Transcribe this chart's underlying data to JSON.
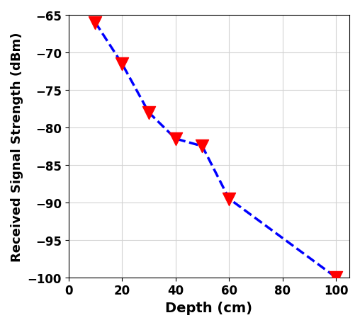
{
  "x": [
    10,
    20,
    30,
    40,
    50,
    60,
    100
  ],
  "y": [
    -66,
    -71.5,
    -78,
    -81.5,
    -82.5,
    -89.5,
    -100
  ],
  "line_color": "#0000FF",
  "marker_color": "#FF0000",
  "marker": "v",
  "marker_size": 13,
  "line_width": 2.5,
  "line_style": "--",
  "xlabel": "Depth (cm)",
  "ylabel": "Received Signal Strength (dBm)",
  "xlim": [
    0,
    105
  ],
  "ylim_bottom": -100,
  "ylim_top": -65,
  "xticks": [
    0,
    20,
    40,
    60,
    80,
    100
  ],
  "yticks": [
    -100,
    -95,
    -90,
    -85,
    -80,
    -75,
    -70,
    -65
  ],
  "grid": true,
  "xlabel_fontsize": 14,
  "ylabel_fontsize": 13,
  "tick_fontsize": 12
}
